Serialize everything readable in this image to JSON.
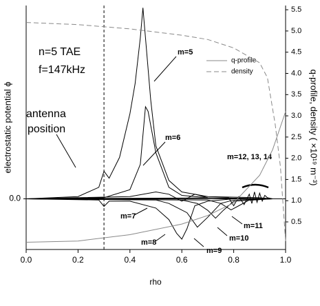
{
  "chart_data": {
    "type": "line",
    "xlabel": "rho",
    "ylabel": "electrostatic potential ϕ",
    "y2label": "q-profile, density ( ×10¹⁹ m⁻³)",
    "xlim": [
      0,
      1
    ],
    "xticks": [
      {
        "value": 0,
        "label": "0.0"
      },
      0.2,
      0.4,
      0.6,
      0.8,
      {
        "value": 1,
        "label": "1.0"
      }
    ],
    "ylim": [
      -2.2,
      8.4
    ],
    "yticks": [
      {
        "value": 0,
        "label": "0.0"
      }
    ],
    "y2lim": [
      -0.15,
      5.6
    ],
    "y2ticks": [
      0.5,
      {
        "value": 1,
        "label": "1.0"
      },
      1.5,
      {
        "value": 2,
        "label": "2.0"
      },
      2.5,
      {
        "value": 3,
        "label": "3.0"
      },
      3.5,
      {
        "value": 4,
        "label": "4.0"
      },
      4.5,
      {
        "value": 5,
        "label": "5.0"
      },
      5.5
    ],
    "antenna_x": 0.3,
    "annotations": [
      "n=5 TAE",
      "f=147kHz",
      "antenna",
      "position"
    ],
    "legend": "upper right",
    "series": [
      {
        "name": "m=5",
        "color": "#000000",
        "x": [
          0,
          0.2,
          0.28,
          0.3,
          0.32,
          0.36,
          0.4,
          0.42,
          0.44,
          0.45,
          0.46,
          0.48,
          0.5,
          0.55,
          0.6,
          0.7,
          0.9,
          0.95
        ],
        "values": [
          0,
          0.1,
          0.5,
          1.2,
          0.9,
          1.8,
          3.7,
          5.0,
          7.0,
          8.3,
          7.0,
          4.3,
          2.3,
          0.8,
          0.3,
          0.1,
          0.05,
          0
        ]
      },
      {
        "name": "m=6",
        "color": "#000000",
        "x": [
          0,
          0.3,
          0.4,
          0.44,
          0.46,
          0.47,
          0.5,
          0.55,
          0.6,
          0.7,
          0.95
        ],
        "values": [
          0,
          0.05,
          0.4,
          1.5,
          4.0,
          3.8,
          2.0,
          0.5,
          0.15,
          0.05,
          0
        ]
      },
      {
        "name": "m=7",
        "color": "#000000",
        "x": [
          0,
          0.4,
          0.5,
          0.55,
          0.6,
          0.65,
          0.7,
          0.95
        ],
        "values": [
          0,
          0.1,
          0.3,
          0.2,
          -0.1,
          0.2,
          0.05,
          0
        ]
      },
      {
        "name": "m=8",
        "color": "#000000",
        "x": [
          0,
          0.28,
          0.3,
          0.32,
          0.4,
          0.5,
          0.55,
          0.58,
          0.6,
          0.62,
          0.65,
          0.7,
          0.8,
          0.95
        ],
        "values": [
          0,
          -0.05,
          -0.33,
          -0.1,
          -0.1,
          -0.4,
          -0.9,
          -1.5,
          -1.75,
          -1.3,
          -0.3,
          -0.1,
          0,
          0
        ]
      },
      {
        "name": "m=9",
        "color": "#000000",
        "x": [
          0,
          0.5,
          0.55,
          0.62,
          0.66,
          0.7,
          0.75,
          0.8,
          0.95
        ],
        "values": [
          0,
          -0.05,
          -0.2,
          -0.6,
          -1.23,
          -0.8,
          -0.2,
          -0.05,
          0
        ]
      },
      {
        "name": "m=10",
        "color": "#000000",
        "x": [
          0,
          0.6,
          0.66,
          0.7,
          0.73,
          0.76,
          0.8,
          0.95
        ],
        "values": [
          0,
          -0.05,
          -0.2,
          -0.5,
          -0.84,
          -0.5,
          -0.1,
          0
        ]
      },
      {
        "name": "m=11",
        "color": "#000000",
        "x": [
          0,
          0.7,
          0.75,
          0.79,
          0.82,
          0.86,
          0.95
        ],
        "values": [
          0,
          -0.05,
          -0.2,
          -0.48,
          -0.3,
          -0.05,
          0
        ]
      },
      {
        "name": "m=12, 13, 14",
        "color": "#000000",
        "x": [
          0,
          0.78,
          0.8,
          0.82,
          0.84,
          0.86,
          0.87,
          0.88,
          0.89,
          0.9,
          0.91,
          0.92,
          0.93,
          0.95
        ],
        "values": [
          0,
          0.05,
          -0.3,
          0.1,
          -0.25,
          0.2,
          -0.2,
          0.3,
          -0.15,
          0.25,
          -0.1,
          0.15,
          0.05,
          0
        ]
      },
      {
        "name": "q-profile",
        "color": "#888888",
        "axis": "y2",
        "dash": false,
        "x": [
          0,
          0.2,
          0.4,
          0.6,
          0.7,
          0.8,
          0.9,
          0.95,
          1.0
        ],
        "values": [
          0.02,
          0.05,
          0.2,
          0.45,
          0.65,
          0.95,
          1.6,
          2.2,
          3.1
        ]
      },
      {
        "name": "density",
        "color": "#888888",
        "axis": "y2",
        "dash": true,
        "x": [
          0,
          0.2,
          0.4,
          0.6,
          0.7,
          0.8,
          0.9,
          0.93,
          0.96,
          0.98,
          1.0
        ],
        "values": [
          5.2,
          5.15,
          5.05,
          4.9,
          4.8,
          4.6,
          4.25,
          3.9,
          2.8,
          1.8,
          0.05
        ]
      }
    ]
  }
}
